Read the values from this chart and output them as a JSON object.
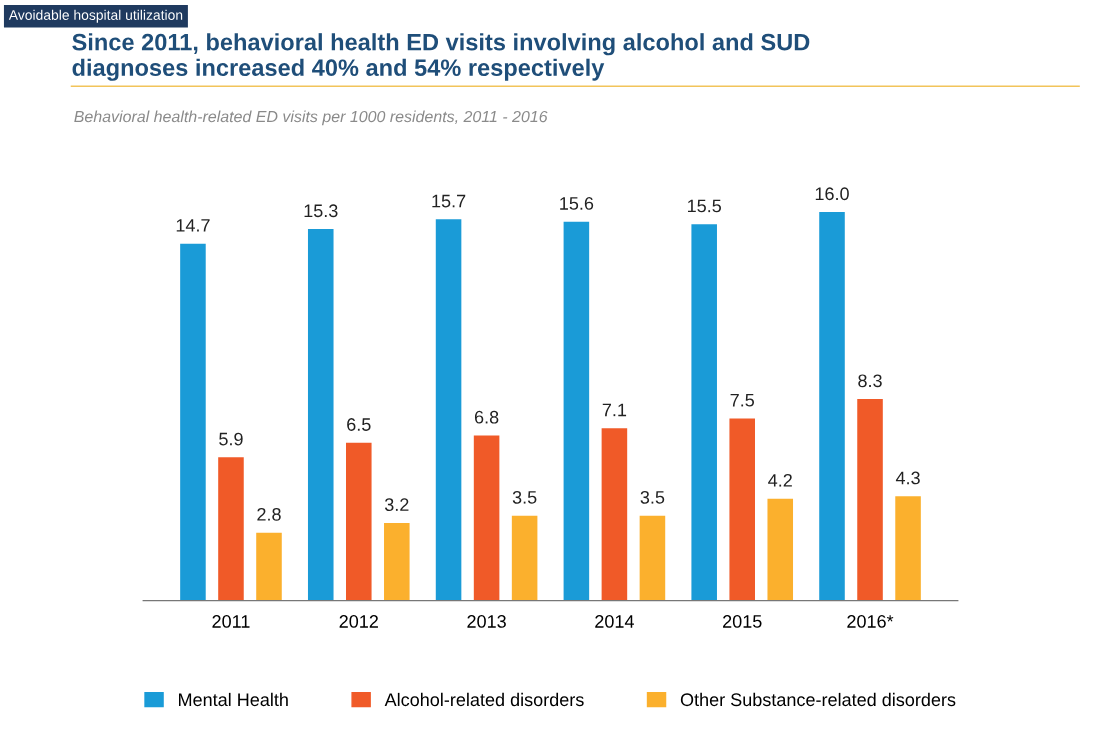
{
  "chart_data": {
    "type": "bar",
    "title": "Since 2011, behavioral health ED visits involving alcohol and SUD\ndiagnoses increased 40% and 54% respectively",
    "subtitle": "Behavioral health-related ED visits per 1000 residents, 2011 - 2016",
    "annotations": [
      "Avoidable hospital utilization"
    ],
    "categories": [
      "2011",
      "2012",
      "2013",
      "2014",
      "2015",
      "2016*"
    ],
    "series": [
      {
        "name": "Mental Health",
        "color": "#1a9bd7",
        "values": [
          14.7,
          15.3,
          15.7,
          15.6,
          15.5,
          16.0
        ],
        "value_labels": [
          "14.7",
          "15.3",
          "15.7",
          "15.6",
          "15.5",
          "16.0"
        ]
      },
      {
        "name": "Alcohol-related disorders",
        "color": "#f05a28",
        "values": [
          5.9,
          6.5,
          6.8,
          7.1,
          7.5,
          8.3
        ]
      },
      {
        "name": "Other Substance-related disorders",
        "color": "#fbb02d",
        "values": [
          2.8,
          3.2,
          3.5,
          3.5,
          4.2,
          4.3
        ]
      }
    ],
    "data_labels": true,
    "legend": "bottom",
    "grid": false,
    "tick_labels": "x"
  }
}
